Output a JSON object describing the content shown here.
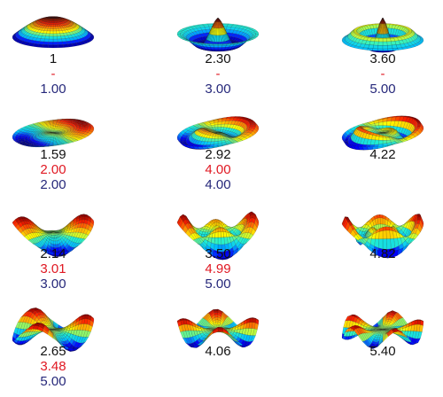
{
  "colormap": [
    "#00007f",
    "#0000ff",
    "#00bfff",
    "#22f0d0",
    "#ffff00",
    "#ff9900",
    "#ff2000",
    "#8a0000"
  ],
  "modes": [
    {
      "name": "mode-r1-c1",
      "labels": [
        "1",
        "-",
        "1.00"
      ]
    },
    {
      "name": "mode-r1-c2",
      "labels": [
        "2.30",
        "-",
        "3.00"
      ]
    },
    {
      "name": "mode-r1-c3",
      "labels": [
        "3.60",
        "-",
        "5.00"
      ]
    },
    {
      "name": "mode-r2-c1",
      "labels": [
        "1.59",
        "2.00",
        "2.00"
      ]
    },
    {
      "name": "mode-r2-c2",
      "labels": [
        "2.92",
        "4.00",
        "4.00"
      ]
    },
    {
      "name": "mode-r2-c3",
      "labels": [
        "4.22"
      ]
    },
    {
      "name": "mode-r3-c1",
      "labels": [
        "2.14",
        "3.01",
        "3.00"
      ]
    },
    {
      "name": "mode-r3-c2",
      "labels": [
        "3.50",
        "4.99",
        "5.00"
      ]
    },
    {
      "name": "mode-r3-c3",
      "labels": [
        "4.82"
      ]
    },
    {
      "name": "mode-r4-c1",
      "labels": [
        "2.65",
        "3.48",
        "5.00"
      ]
    },
    {
      "name": "mode-r4-c2",
      "labels": [
        "4.06"
      ]
    },
    {
      "name": "mode-r4-c3",
      "labels": [
        "5.40"
      ]
    }
  ]
}
